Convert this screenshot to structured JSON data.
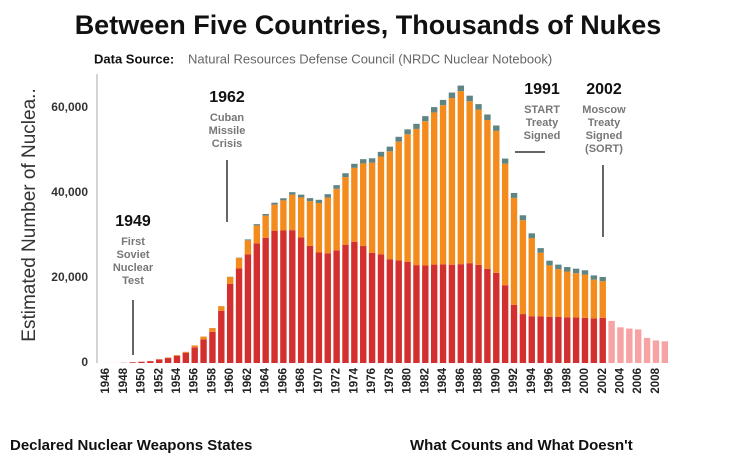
{
  "chart_data": {
    "type": "stacked_bar",
    "title": "Between Five Countries, Thousands of Nukes",
    "subtitle_label": "Data Source:",
    "subtitle": "Natural Resources Defense Council (NRDC Nuclear Notebook)",
    "ylabel": "Estimated Number of Nuclea..",
    "ylim": [
      0,
      68000
    ],
    "yticks": [
      0,
      {
        "value": 20000,
        "label": "20,000"
      },
      {
        "value": 40000,
        "label": "40,000"
      },
      {
        "value": 60000,
        "label": "60,000"
      }
    ],
    "categories": [
      "1946",
      null,
      "1948",
      null,
      "1950",
      null,
      "1952",
      null,
      "1954",
      null,
      "1956",
      null,
      "1958",
      null,
      "1960",
      null,
      "1962",
      null,
      "1964",
      null,
      "1966",
      null,
      "1968",
      null,
      "1970",
      null,
      "1972",
      null,
      "1974",
      null,
      "1976",
      null,
      "1978",
      null,
      "1980",
      null,
      "1982",
      null,
      "1984",
      null,
      "1986",
      null,
      "1988",
      null,
      "1990",
      null,
      "1992",
      null,
      "1994",
      null,
      "1996",
      null,
      "1998",
      null,
      "2000",
      null,
      "2002",
      null,
      "2004",
      null,
      "2006",
      null,
      "2008",
      null
    ],
    "series": [
      {
        "color": "#d42f2f",
        "values": [
          9,
          13,
          50,
          170,
          299,
          438,
          841,
          1169,
          1703,
          2422,
          3692,
          5543,
          7345,
          12298,
          18638,
          22229,
          25540,
          28133,
          29463,
          31139,
          31175,
          31255,
          29561,
          27552,
          26008,
          25830,
          26516,
          27835,
          28537,
          27519,
          25914,
          25542,
          24418,
          24138,
          23764,
          23031,
          22937,
          23154,
          23228,
          23135,
          23254,
          23490,
          23077,
          22174,
          21211,
          18306,
          13700,
          11511,
          11011,
          10953,
          10886,
          10829,
          10763,
          10698,
          10615,
          10491,
          10640,
          null,
          null,
          null,
          null,
          null,
          null,
          null
        ]
      },
      {
        "color": "#f38b1d",
        "values": [
          0,
          0,
          0,
          1,
          5,
          25,
          50,
          120,
          150,
          200,
          426,
          660,
          869,
          1060,
          1605,
          2471,
          3322,
          4238,
          5221,
          6129,
          7089,
          8339,
          9399,
          10538,
          11643,
          13092,
          14478,
          15915,
          17385,
          19443,
          21205,
          23044,
          25393,
          27935,
          30062,
          32049,
          33952,
          35804,
          37431,
          39197,
          40723,
          38107,
          36538,
          35000,
          33417,
          28595,
          25155,
          22101,
          18399,
          14978,
          12085,
          11264,
          10764,
          10451,
          10201,
          9126,
          8600,
          null,
          null,
          null,
          null,
          null,
          null,
          null
        ]
      },
      {
        "color": "#5e8483",
        "values": [
          0,
          0,
          0,
          0,
          0,
          0,
          1,
          1,
          5,
          10,
          15,
          20,
          22,
          25,
          50,
          80,
          220,
          300,
          380,
          450,
          500,
          600,
          650,
          700,
          750,
          800,
          850,
          900,
          950,
          1000,
          1050,
          1100,
          1100,
          1150,
          1150,
          1200,
          1200,
          1250,
          1250,
          1300,
          1300,
          1300,
          1300,
          1300,
          1250,
          1200,
          1150,
          1150,
          1100,
          1100,
          1100,
          1050,
          1050,
          1050,
          1000,
          1000,
          1000,
          null,
          null,
          null,
          null,
          null,
          null,
          null
        ]
      },
      {
        "color": "#f7a3a3",
        "values": [
          null,
          null,
          null,
          null,
          null,
          null,
          null,
          null,
          null,
          null,
          null,
          null,
          null,
          null,
          null,
          null,
          null,
          null,
          null,
          null,
          null,
          null,
          null,
          null,
          null,
          null,
          null,
          null,
          null,
          null,
          null,
          null,
          null,
          null,
          null,
          null,
          null,
          null,
          null,
          null,
          null,
          null,
          null,
          null,
          null,
          null,
          null,
          null,
          null,
          null,
          null,
          null,
          null,
          null,
          null,
          null,
          null,
          9900,
          8400,
          8100,
          7900,
          5900,
          5300,
          5100
        ]
      }
    ],
    "annotations": [
      {
        "year": "1949",
        "lines": [
          "First",
          "Soviet",
          "Nuclear",
          "Test"
        ]
      },
      {
        "year": "1962",
        "lines": [
          "Cuban",
          "Missile",
          "Crisis"
        ]
      },
      {
        "year": "1991",
        "lines": [
          "START",
          "Treaty",
          "Signed"
        ]
      },
      {
        "year": "2002",
        "lines": [
          "Moscow",
          "Treaty",
          "Signed",
          "(SORT)"
        ]
      }
    ]
  },
  "footer": {
    "left": "Declared Nuclear Weapons States",
    "right": "What Counts and What Doesn't"
  }
}
